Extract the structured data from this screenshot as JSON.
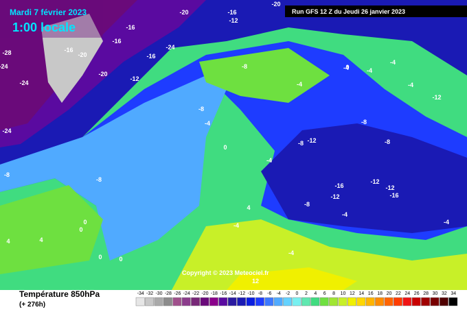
{
  "header": {
    "date": "Mardi 7 février 2023",
    "time": "1:00 locale",
    "run": "Run GFS 12 Z du Jeudi 26 janvier 2023"
  },
  "copyright": "Copyright © 2023 Meteociel.fr",
  "footer": {
    "title": "Température 850hPa",
    "lead": "(+ 276h)"
  },
  "isotherm_labels": [
    -20,
    -16,
    -12,
    -16,
    -20,
    -16,
    -16,
    -24,
    -28,
    -24,
    -20,
    -24,
    -12,
    -20,
    -16,
    -24,
    -8,
    -4,
    0,
    -4,
    -8,
    -4,
    -4,
    0,
    -4,
    -4,
    -12,
    -8,
    -8,
    -4,
    -8,
    -12,
    -12,
    -16,
    -16,
    -12,
    -12,
    -8,
    -4,
    -8,
    0,
    0,
    0,
    0,
    -4,
    -4,
    -8,
    4,
    4,
    4,
    12,
    -4
  ],
  "scale": {
    "ticks": [
      -34,
      -32,
      -30,
      -28,
      -26,
      -24,
      -22,
      -20,
      -18,
      -16,
      -14,
      -12,
      -10,
      -8,
      -6,
      -4,
      -2,
      0,
      2,
      4,
      6,
      8,
      10,
      12,
      14,
      16,
      18,
      20,
      22,
      24,
      26,
      28,
      30,
      32,
      34
    ],
    "colors": [
      "#e6e6e6",
      "#c8c8c8",
      "#aaaaaa",
      "#8c8c8c",
      "#a0508c",
      "#8c3c8c",
      "#782878",
      "#6a0a7a",
      "#8b008b",
      "#5a0aa0",
      "#2a1aa0",
      "#1a1ab4",
      "#0a1ee0",
      "#1e3cff",
      "#3c78ff",
      "#50aaff",
      "#64d2ff",
      "#78f0f0",
      "#60e8b0",
      "#40dc80",
      "#6ee040",
      "#a0e632",
      "#c8f028",
      "#f0f000",
      "#ffd700",
      "#ffb400",
      "#ff8c00",
      "#ff6400",
      "#ff3c00",
      "#f01414",
      "#c80000",
      "#a00000",
      "#780000",
      "#500000",
      "#000000"
    ]
  }
}
